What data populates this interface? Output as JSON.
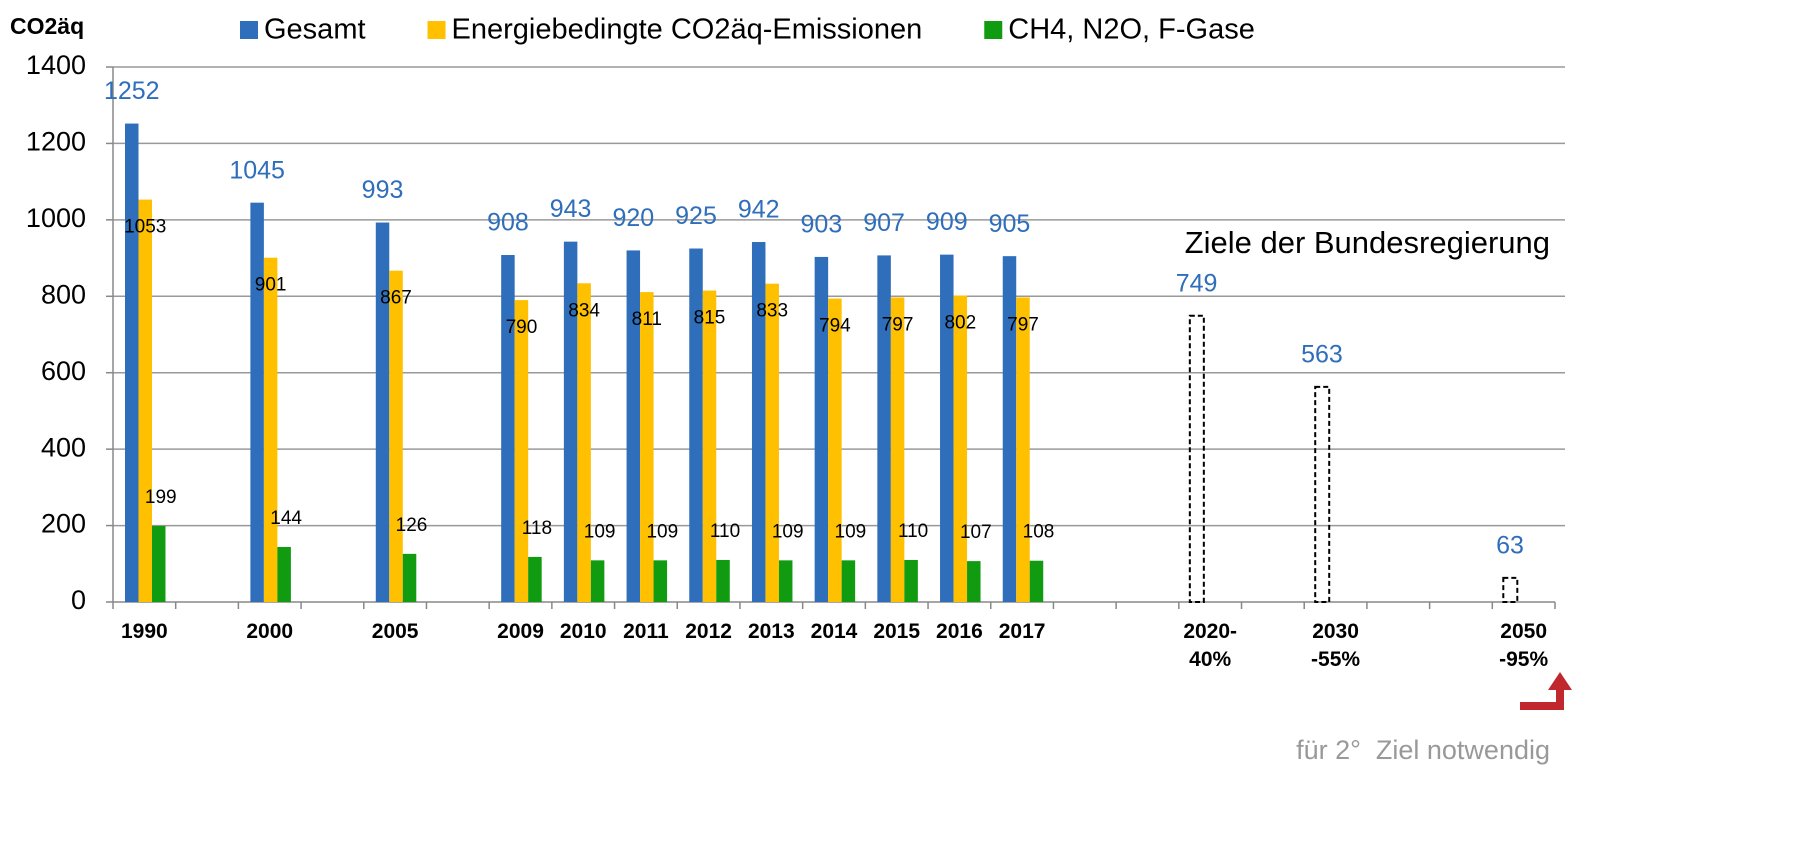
{
  "chart_data": {
    "type": "bar",
    "y_label": "CO2äq",
    "categories": [
      "1990",
      null,
      "2000",
      null,
      "2005",
      null,
      "2009",
      "2010",
      "2011",
      "2012",
      "2013",
      "2014",
      "2015",
      "2016",
      "2017",
      null,
      null,
      "2020-\n40%",
      null,
      "2030\n-55%",
      null,
      null,
      "2050\n-95%"
    ],
    "series": [
      {
        "name": "Gesamt",
        "color": "#2f6eba",
        "values": [
          1252,
          null,
          1045,
          null,
          993,
          null,
          908,
          943,
          920,
          925,
          942,
          903,
          907,
          909,
          905,
          null,
          null,
          null,
          null,
          null,
          null,
          null,
          null
        ]
      },
      {
        "name": "Energiebedingte CO2äq-Emissionen",
        "color": "#ffc000",
        "values": [
          1053,
          null,
          901,
          null,
          867,
          null,
          790,
          834,
          811,
          815,
          833,
          794,
          797,
          802,
          797,
          null,
          null,
          null,
          null,
          null,
          null,
          null,
          null
        ]
      },
      {
        "name": "CH4, N2O, F-Gase",
        "color": "#109b10",
        "values": [
          199,
          null,
          144,
          null,
          126,
          null,
          118,
          109,
          109,
          110,
          109,
          109,
          110,
          107,
          108,
          null,
          null,
          null,
          null,
          null,
          null,
          null,
          null
        ]
      },
      {
        "color": "#000000",
        "style": "dashed",
        "values": [
          null,
          null,
          null,
          null,
          null,
          null,
          null,
          null,
          null,
          null,
          null,
          null,
          null,
          null,
          null,
          null,
          null,
          749,
          null,
          563,
          null,
          null,
          63
        ]
      }
    ],
    "ylim": [
      0,
      1400
    ],
    "yticks": [
      0,
      200,
      400,
      600,
      800,
      1000,
      1200,
      1400
    ],
    "grid": true,
    "legend": "top",
    "annotations": [
      "Ziele der Bundesregierung",
      "für 2°  Ziel notwendig"
    ]
  }
}
